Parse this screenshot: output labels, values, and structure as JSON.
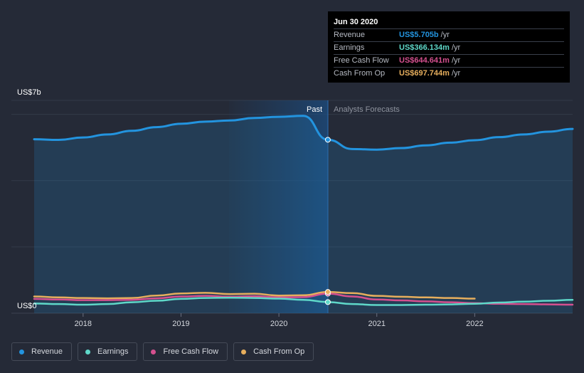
{
  "chart_data": {
    "type": "line",
    "y_axis": {
      "top_label": "US$7b",
      "bottom_label": "US$0",
      "ylim": [
        0,
        7
      ]
    },
    "x_ticks": [
      "2018",
      "2019",
      "2020",
      "2021",
      "2022"
    ],
    "divider_labels": {
      "past": "Past",
      "forecast": "Analysts Forecasts"
    },
    "series": [
      {
        "name": "Revenue",
        "color": "#2394df",
        "points": [
          [
            2017.5,
            5.72
          ],
          [
            2017.75,
            5.7
          ],
          [
            2018,
            5.78
          ],
          [
            2018.25,
            5.88
          ],
          [
            2018.5,
            6.0
          ],
          [
            2018.75,
            6.12
          ],
          [
            2019,
            6.23
          ],
          [
            2019.25,
            6.3
          ],
          [
            2019.5,
            6.34
          ],
          [
            2019.75,
            6.42
          ],
          [
            2020,
            6.46
          ],
          [
            2020.25,
            6.49
          ],
          [
            2020.5,
            5.705
          ],
          [
            2020.75,
            5.4
          ],
          [
            2021,
            5.38
          ],
          [
            2021.25,
            5.43
          ],
          [
            2021.5,
            5.52
          ],
          [
            2021.75,
            5.61
          ],
          [
            2022,
            5.69
          ],
          [
            2022.25,
            5.79
          ],
          [
            2022.5,
            5.88
          ],
          [
            2022.75,
            5.97
          ],
          [
            2023.0,
            6.06
          ]
        ]
      },
      {
        "name": "Earnings",
        "color": "#5fd8c9",
        "points": [
          [
            2017.5,
            0.32
          ],
          [
            2017.75,
            0.3
          ],
          [
            2018,
            0.28
          ],
          [
            2018.25,
            0.3
          ],
          [
            2018.5,
            0.36
          ],
          [
            2018.75,
            0.41
          ],
          [
            2019,
            0.47
          ],
          [
            2019.25,
            0.5
          ],
          [
            2019.5,
            0.51
          ],
          [
            2019.75,
            0.5
          ],
          [
            2020,
            0.48
          ],
          [
            2020.25,
            0.44
          ],
          [
            2020.5,
            0.366
          ],
          [
            2020.75,
            0.3
          ],
          [
            2021,
            0.27
          ],
          [
            2021.25,
            0.27
          ],
          [
            2021.5,
            0.28
          ],
          [
            2021.75,
            0.29
          ],
          [
            2022,
            0.31
          ],
          [
            2022.25,
            0.35
          ],
          [
            2022.5,
            0.38
          ],
          [
            2022.75,
            0.41
          ],
          [
            2023.0,
            0.44
          ]
        ]
      },
      {
        "name": "Free Cash Flow",
        "color": "#d5508f",
        "points": [
          [
            2017.5,
            0.47
          ],
          [
            2017.75,
            0.45
          ],
          [
            2018,
            0.43
          ],
          [
            2018.25,
            0.43
          ],
          [
            2018.5,
            0.44
          ],
          [
            2018.75,
            0.49
          ],
          [
            2019,
            0.55
          ],
          [
            2019.25,
            0.57
          ],
          [
            2019.5,
            0.54
          ],
          [
            2019.75,
            0.56
          ],
          [
            2020,
            0.52
          ],
          [
            2020.25,
            0.53
          ],
          [
            2020.5,
            0.645
          ],
          [
            2020.75,
            0.55
          ],
          [
            2021,
            0.45
          ],
          [
            2021.25,
            0.42
          ],
          [
            2021.5,
            0.39
          ],
          [
            2021.75,
            0.36
          ],
          [
            2022,
            0.33
          ],
          [
            2022.25,
            0.31
          ],
          [
            2022.5,
            0.3
          ],
          [
            2022.75,
            0.29
          ],
          [
            2023.0,
            0.28
          ]
        ]
      },
      {
        "name": "Cash From Op",
        "color": "#e6ae5d",
        "points": [
          [
            2017.5,
            0.55
          ],
          [
            2017.75,
            0.52
          ],
          [
            2018,
            0.5
          ],
          [
            2018.25,
            0.49
          ],
          [
            2018.5,
            0.5
          ],
          [
            2018.75,
            0.58
          ],
          [
            2019,
            0.65
          ],
          [
            2019.25,
            0.67
          ],
          [
            2019.5,
            0.63
          ],
          [
            2019.75,
            0.64
          ],
          [
            2020,
            0.58
          ],
          [
            2020.25,
            0.59
          ],
          [
            2020.5,
            0.698
          ],
          [
            2020.75,
            0.66
          ],
          [
            2021,
            0.57
          ],
          [
            2021.25,
            0.54
          ],
          [
            2021.5,
            0.52
          ],
          [
            2021.75,
            0.5
          ],
          [
            2022,
            0.48
          ]
        ]
      }
    ],
    "legend_position": "bottom-left",
    "grid": true
  },
  "tooltip": {
    "date": "Jun 30 2020",
    "rows": [
      {
        "label": "Revenue",
        "value": "US$5.705b",
        "unit": "/yr",
        "color": "#2394df"
      },
      {
        "label": "Earnings",
        "value": "US$366.134m",
        "unit": "/yr",
        "color": "#5fd8c9"
      },
      {
        "label": "Free Cash Flow",
        "value": "US$644.641m",
        "unit": "/yr",
        "color": "#d5508f"
      },
      {
        "label": "Cash From Op",
        "value": "US$697.744m",
        "unit": "/yr",
        "color": "#e6ae5d"
      }
    ]
  },
  "legend": [
    {
      "label": "Revenue",
      "color": "#2394df"
    },
    {
      "label": "Earnings",
      "color": "#5fd8c9"
    },
    {
      "label": "Free Cash Flow",
      "color": "#d5508f"
    },
    {
      "label": "Cash From Op",
      "color": "#e6ae5d"
    }
  ]
}
